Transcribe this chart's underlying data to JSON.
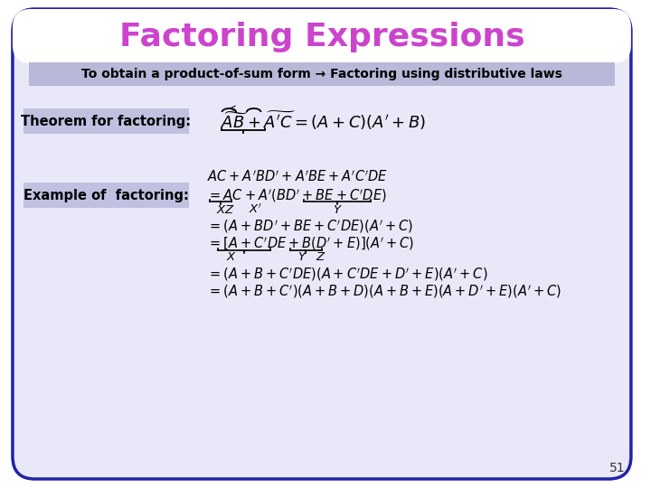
{
  "title": "Factoring Expressions",
  "title_color": "#cc44cc",
  "title_fontsize": 26,
  "bg_color": "#ffffff",
  "border_color": "#2222aa",
  "slide_bg": "#e8e8f8",
  "title_bg": "#ffffff",
  "banner_bg": "#b8b8d8",
  "banner_text": "To obtain a product-of-sum form → Factoring using distributive laws",
  "banner_text_color": "#000000",
  "label_bg": "#c0c0e0",
  "label_color": "#000000",
  "body_color": "#000000",
  "page_number": "51"
}
